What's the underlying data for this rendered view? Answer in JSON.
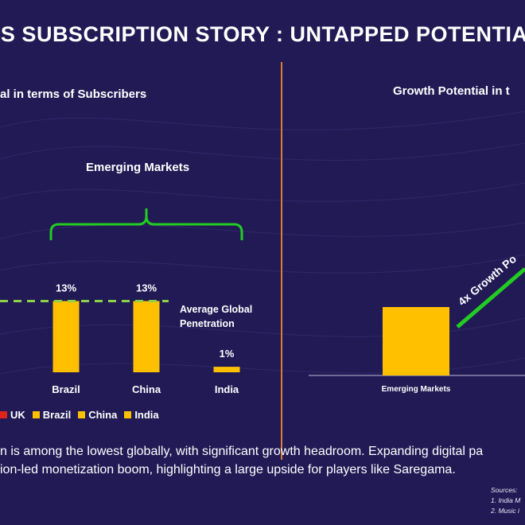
{
  "header": {
    "title": "'S SUBSCRIPTION STORY : UNTAPPED POTENTIAL"
  },
  "left_panel": {
    "subtitle": "al in terms of Subscribers",
    "group_label": "Emerging Markets",
    "avg_label_line1": "Average Global",
    "avg_label_line2": "Penetration",
    "legend": [
      {
        "label": "UK",
        "color": "#e0241c"
      },
      {
        "label": "Brazil",
        "color": "#ffc000"
      },
      {
        "label": "China",
        "color": "#ffc000"
      },
      {
        "label": "India",
        "color": "#ffc000"
      }
    ]
  },
  "right_panel": {
    "subtitle": "Growth Potential in t",
    "arrow_label": "4x Growth Po"
  },
  "footer": {
    "line1": "n is among the lowest globally, with significant growth headroom. Expanding digital pa",
    "line2": "ion-led monetization boom,  highlighting a large upside for players like Saregama.",
    "sources_title": "Sources:",
    "source1": "1. India M",
    "source2": "2. Music i"
  },
  "colors": {
    "background": "#211a55",
    "bar": "#ffc000",
    "accent_green": "#22cc22",
    "divider": "#e07a2e"
  },
  "chart_data": [
    {
      "type": "bar",
      "title": "",
      "categories": [
        "Brazil",
        "China",
        "India"
      ],
      "values": [
        13,
        13,
        1
      ],
      "value_labels": [
        "13%",
        "13%",
        "1%"
      ],
      "reference_line": {
        "label": "Average Global Penetration",
        "value": 13
      },
      "ylim": [
        0,
        18
      ],
      "grid": false
    },
    {
      "type": "bar",
      "title": "",
      "categories": [
        "Emerging Markets"
      ],
      "values": [
        1
      ],
      "annotation": "4x Growth Po",
      "ylim": [
        0,
        1.3
      ],
      "grid": false
    }
  ]
}
